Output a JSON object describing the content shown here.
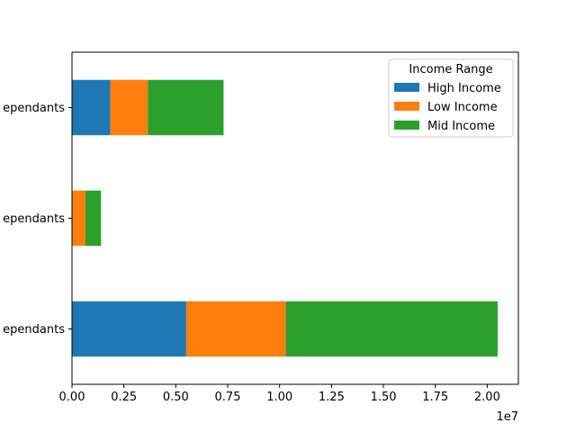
{
  "chart_data": {
    "type": "bar",
    "orientation": "horizontal",
    "stacked": true,
    "categories": [
      "Dependants",
      "Dependants",
      "Dependants"
    ],
    "category_labels_visible": [
      "ependants",
      "ependants",
      "ependants"
    ],
    "series": [
      {
        "name": "High Income",
        "color": "#1f77b4",
        "values": [
          5500000,
          0,
          1850000
        ]
      },
      {
        "name": "Low Income",
        "color": "#ff7f0e",
        "values": [
          4800000,
          650000,
          1800000
        ]
      },
      {
        "name": "Mid Income",
        "color": "#2ca02c",
        "values": [
          10200000,
          750000,
          3650000
        ]
      }
    ],
    "xlim": [
      0,
      21500000
    ],
    "xticks": [
      0,
      2500000,
      5000000,
      7500000,
      10000000,
      12500000,
      15000000,
      17500000,
      20000000
    ],
    "xtick_labels": [
      "0.00",
      "0.25",
      "0.50",
      "0.75",
      "1.00",
      "1.25",
      "1.50",
      "1.75",
      "2.00"
    ],
    "x_offset_label": "1e7",
    "legend": {
      "title": "Income Range",
      "position": "top-right"
    },
    "grid": false
  }
}
